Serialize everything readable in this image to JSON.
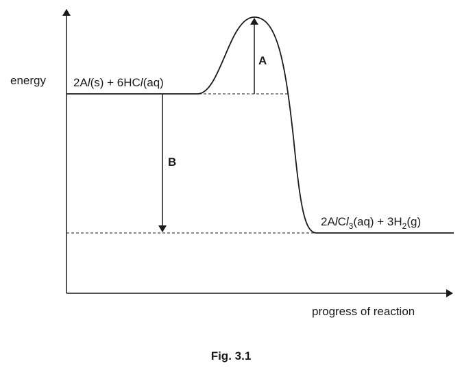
{
  "axes": {
    "y_label": "energy",
    "x_label": "progress of reaction"
  },
  "reactants": [
    "2A",
    "l",
    "(s) + 6HC",
    "l",
    "(aq)"
  ],
  "products": [
    "2A",
    "l",
    "C",
    "l",
    "3",
    "(aq) + 3H",
    "2",
    "(g)"
  ],
  "arrows": {
    "a": "A",
    "b": "B"
  },
  "caption": "Fig. 3.1"
}
